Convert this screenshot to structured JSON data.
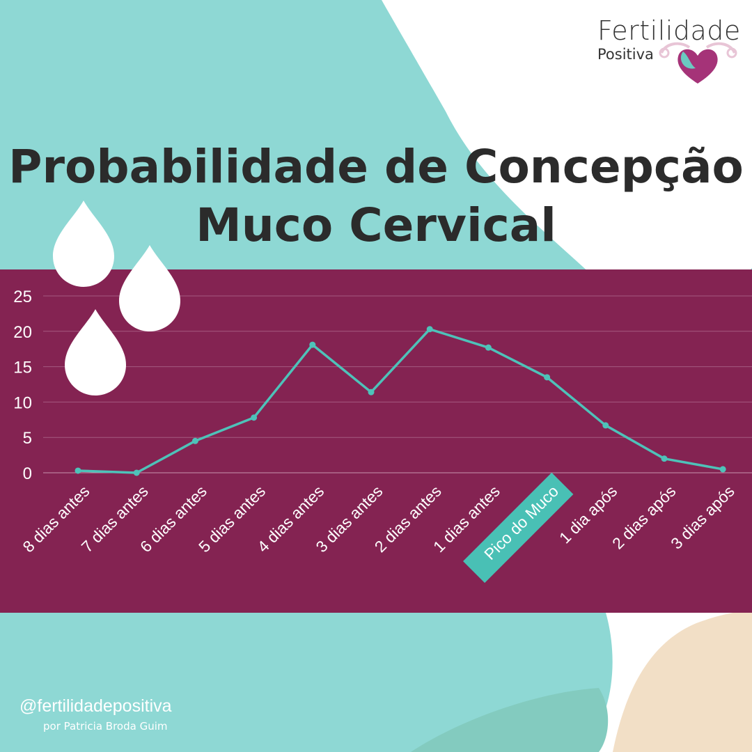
{
  "logo": {
    "name": "Fertilidade",
    "tagline": "Positiva",
    "icon": "uterus-heart-icon"
  },
  "title_line1": "Probabilidade de Concepção",
  "title_line2": "Muco Cervical",
  "footer": {
    "handle": "@fertilidadepositiva",
    "byline": "por Patricia Broda Guim"
  },
  "colors": {
    "band": "#842352",
    "line": "#4ec2b9",
    "teal_bg": "#8ed8d4",
    "peach": "#f2dfc6",
    "highlight": "#49c0b5",
    "text_dark": "#2b2b2b"
  },
  "decorations": [
    "water-drop-icon",
    "water-drop-icon",
    "water-drop-icon"
  ],
  "chart_data": {
    "type": "line",
    "categories": [
      "8 dias antes",
      "7 dias antes",
      "6 dias antes",
      "5 dias antes",
      "4 dias antes",
      "3 dias antes",
      "2 dias antes",
      "1 dias antes",
      "Pico do Muco",
      "1 dia após",
      "2 dias após",
      "3 dias após"
    ],
    "values": [
      0.3,
      0,
      4.5,
      7.8,
      18.1,
      11.4,
      20.3,
      17.7,
      13.5,
      6.7,
      2.0,
      0.5
    ],
    "highlight_category": "Pico do Muco",
    "y_ticks": [
      0,
      5,
      10,
      15,
      20,
      25
    ],
    "ylim": [
      0,
      25
    ],
    "grid": true,
    "legend": "none"
  }
}
